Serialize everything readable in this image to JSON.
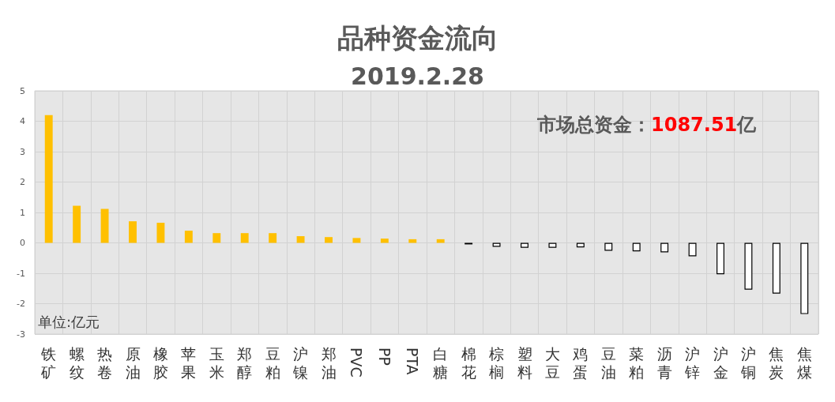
{
  "chart_data": {
    "type": "bar",
    "title": "品种资金流向",
    "subtitle": "2019.2.28",
    "categories": [
      "铁矿",
      "螺纹",
      "热卷",
      "原油",
      "橡胶",
      "苹果",
      "玉米",
      "郑醇",
      "豆粕",
      "沪镍",
      "郑油",
      "PVC",
      "PP",
      "PTA",
      "白糖",
      "棉花",
      "棕榈",
      "塑料",
      "大豆",
      "鸡蛋",
      "豆油",
      "菜粕",
      "沥青",
      "沪锌",
      "沪金",
      "沪铜",
      "焦炭",
      "焦煤"
    ],
    "values": [
      4.2,
      1.22,
      1.12,
      0.71,
      0.66,
      0.4,
      0.32,
      0.32,
      0.32,
      0.22,
      0.19,
      0.16,
      0.14,
      0.12,
      0.12,
      -0.05,
      -0.13,
      -0.16,
      -0.16,
      -0.15,
      -0.26,
      -0.28,
      -0.31,
      -0.44,
      -1.03,
      -1.54,
      -1.67,
      -2.34
    ],
    "colors": [
      "#ffc000",
      "#ffc000",
      "#ffc000",
      "#ffc000",
      "#ffc000",
      "#ffc000",
      "#ffc000",
      "#ffc000",
      "#ffc000",
      "#ffc000",
      "#ffc000",
      "#ffc000",
      "#ffc000",
      "#ffc000",
      "#ffc000",
      "#ffffff",
      "#ffffff",
      "#ffffff",
      "#ffffff",
      "#ffffff",
      "#ffffff",
      "#ffffff",
      "#ffffff",
      "#ffffff",
      "#ffffff",
      "#ffffff",
      "#ffffff",
      "#ffffff"
    ],
    "ylim": [
      -3,
      5
    ],
    "yticks": [
      -3,
      -2,
      -1,
      0,
      1,
      2,
      3,
      4,
      5
    ],
    "grid": true,
    "annotations": [
      "市场总资金：1087.51亿",
      "单位:亿元"
    ]
  }
}
